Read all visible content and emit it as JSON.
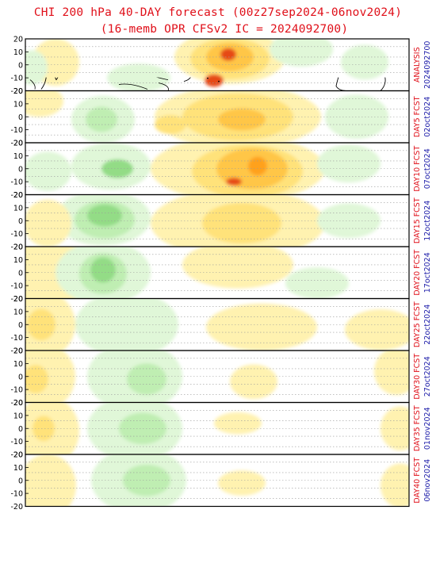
{
  "title_line1": "CHI 200 hPa 40-DAY forecast (00z27sep2024-06nov2024)",
  "title_line2": "(16-memb OPR CFSv2 IC = 2024092700)",
  "lat_ticks": [
    "20",
    "10",
    "0",
    "-10",
    "-20"
  ],
  "colors": {
    "title": "#e0101a",
    "panel_label": "#e0101a",
    "date_label": "#1a1aa8",
    "positive_shades": [
      "#fff2b0",
      "#ffe27a",
      "#ffc646",
      "#ffa11e",
      "#f07810"
    ],
    "negative_shades": [
      "#e0f7d8",
      "#bfeeb2",
      "#93dc86",
      "#55c85a"
    ],
    "core_positive": "#e64a19"
  },
  "panels": [
    {
      "label": "ANALYSIS",
      "date": "2024092700"
    },
    {
      "label": "DAY5 FCST",
      "date": "02oct2024"
    },
    {
      "label": "DAY10 FCST",
      "date": "07oct2024"
    },
    {
      "label": "DAY15 FCST",
      "date": "12oct2024"
    },
    {
      "label": "DAY20 FCST",
      "date": "17oct2024"
    },
    {
      "label": "DAY25 FCST",
      "date": "22oct2024"
    },
    {
      "label": "DAY30 FCST",
      "date": "27oct2024"
    },
    {
      "label": "DAY35 FCST",
      "date": "01nov2024"
    },
    {
      "label": "DAY40 FCST",
      "date": "06nov2024"
    }
  ]
}
